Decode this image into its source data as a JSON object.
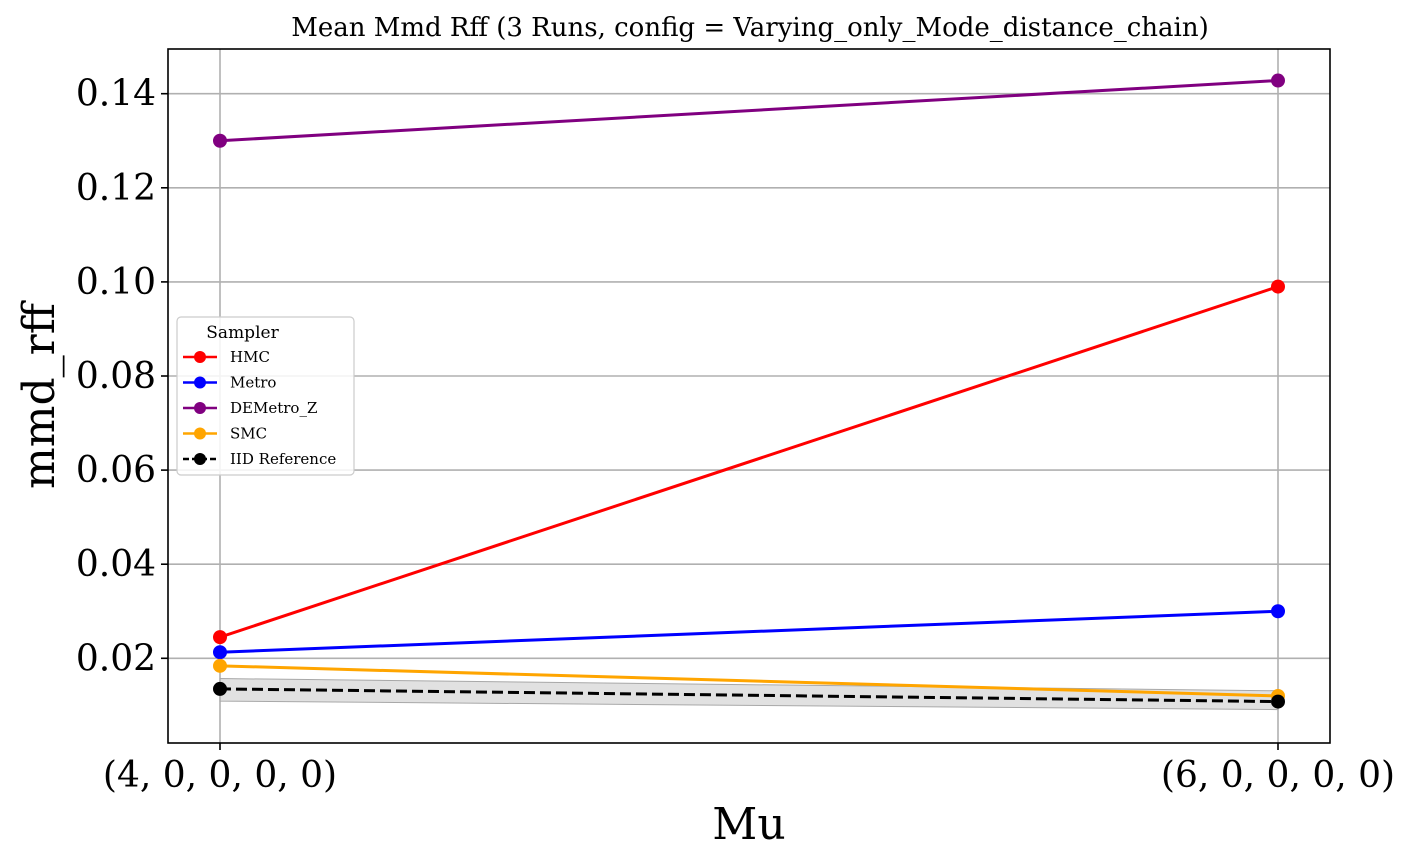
{
  "chart_data": {
    "type": "line",
    "title": "Mean Mmd Rff (3 Runs, config = Varying_only_Mode_distance_chain)",
    "xlabel": "Mu",
    "ylabel": "mmd_rff",
    "categories": [
      "(4, 0, 0, 0, 0)",
      "(6, 0, 0, 0, 0)"
    ],
    "ylim": [
      0.002,
      0.1495
    ],
    "yticks": [
      0.02,
      0.04,
      0.06,
      0.08,
      0.1,
      0.12,
      0.14
    ],
    "ytick_labels": [
      "0.02",
      "0.04",
      "0.06",
      "0.08",
      "0.10",
      "0.12",
      "0.14"
    ],
    "grid": true,
    "legend": {
      "title": "Sampler",
      "placement": "center-left"
    },
    "series": [
      {
        "name": "HMC",
        "values": [
          0.0245,
          0.099
        ],
        "color": "#ff0000",
        "style": "solid",
        "marker": "circle"
      },
      {
        "name": "Metro",
        "values": [
          0.0213,
          0.03
        ],
        "color": "#0000ff",
        "style": "solid",
        "marker": "circle"
      },
      {
        "name": "DEMetro_Z",
        "values": [
          0.13,
          0.1428
        ],
        "color": "#800080",
        "style": "solid",
        "marker": "circle"
      },
      {
        "name": "SMC",
        "values": [
          0.0184,
          0.012
        ],
        "color": "#ffa500",
        "style": "solid",
        "marker": "circle"
      },
      {
        "name": "IID Reference",
        "values": [
          0.0135,
          0.0108
        ],
        "color": "#000000",
        "style": "dashed",
        "marker": "circle",
        "band": {
          "lower": [
            0.0109,
            0.0091
          ],
          "upper": [
            0.0157,
            0.0131
          ],
          "color": "#c8c8c8"
        }
      }
    ]
  }
}
